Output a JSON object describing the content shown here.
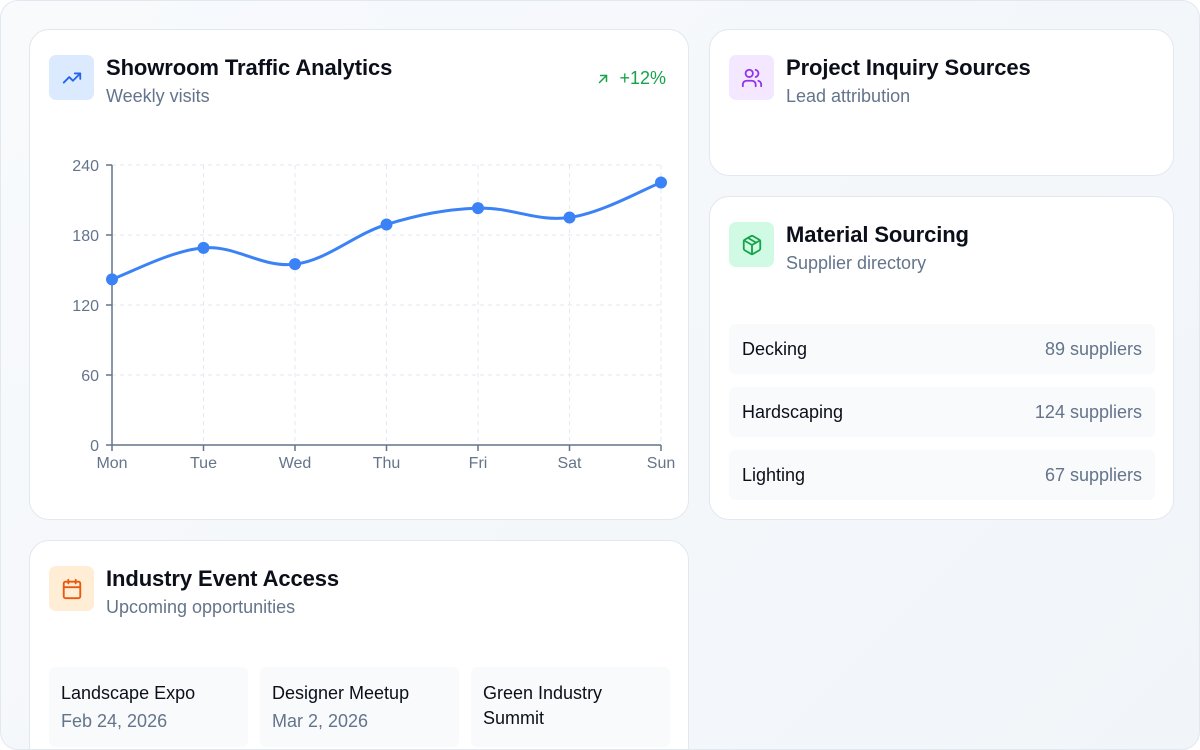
{
  "traffic_card": {
    "title": "Showroom Traffic Analytics",
    "subtitle": "Weekly visits",
    "icon": "trending-up-icon",
    "trend": {
      "icon": "arrow-up-right-icon",
      "value": "+12%",
      "color": "#16a34a"
    },
    "accent_color": "#3b82f6"
  },
  "inquiry_card": {
    "title": "Project Inquiry Sources",
    "subtitle": "Lead attribution",
    "icon": "users-icon"
  },
  "sourcing_card": {
    "title": "Material Sourcing",
    "subtitle": "Supplier directory",
    "icon": "package-icon",
    "rows": [
      {
        "name": "Decking",
        "count": "89 suppliers"
      },
      {
        "name": "Hardscaping",
        "count": "124 suppliers"
      },
      {
        "name": "Lighting",
        "count": "67 suppliers"
      }
    ]
  },
  "events_card": {
    "title": "Industry Event Access",
    "subtitle": "Upcoming opportunities",
    "icon": "calendar-icon",
    "events": [
      {
        "name": "Landscape Expo",
        "date": "Feb 24, 2026"
      },
      {
        "name": "Designer Meetup",
        "date": "Mar 2, 2026"
      },
      {
        "name": "Green Industry Summit",
        "date": ""
      }
    ]
  },
  "chart_data": {
    "type": "line",
    "title": "Showroom Traffic Analytics",
    "subtitle": "Weekly visits",
    "categories": [
      "Mon",
      "Tue",
      "Wed",
      "Thu",
      "Fri",
      "Sat",
      "Sun"
    ],
    "series": [
      {
        "name": "Weekly visits",
        "values": [
          142,
          169,
          155,
          189,
          203,
          195,
          225
        ],
        "color": "#3b82f6"
      }
    ],
    "xlabel": "",
    "ylabel": "",
    "ylim": [
      0,
      240
    ],
    "yticks": [
      "0",
      "60",
      "120",
      "180",
      "240"
    ],
    "grid": true,
    "legend": "none",
    "smooth": true
  }
}
